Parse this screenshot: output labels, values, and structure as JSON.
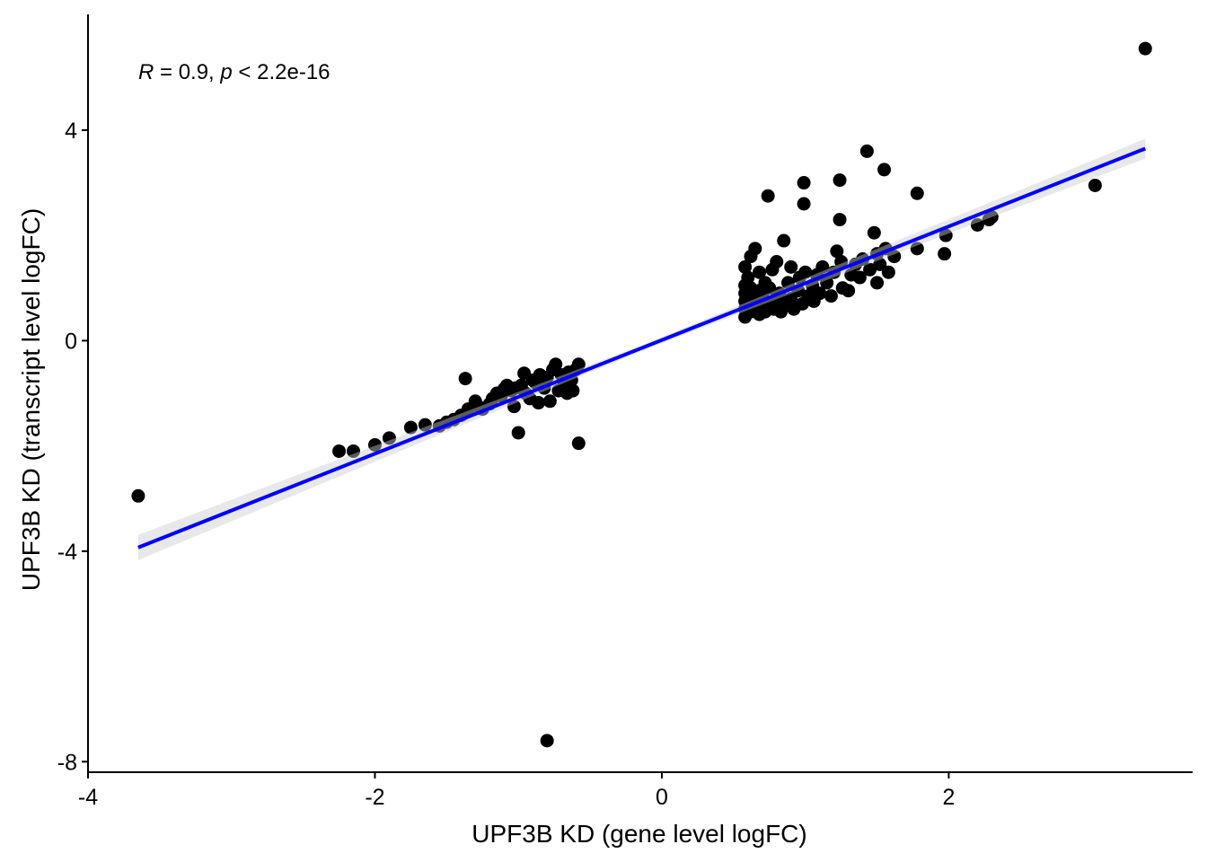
{
  "chart_data": {
    "type": "scatter",
    "xlabel": "UPF3B KD (gene level logFC)",
    "ylabel": "UPF3B KD (transcript level logFC)",
    "xlim": [
      -4.0,
      3.7
    ],
    "ylim": [
      -8.2,
      6.2
    ],
    "xticks": [
      -4,
      -2,
      0,
      2
    ],
    "xtick_labels": [
      "-4",
      "-2",
      "0",
      "2"
    ],
    "yticks": [
      -8,
      -4,
      0,
      4
    ],
    "ytick_labels": [
      "-8",
      "-4",
      "0",
      "4"
    ],
    "grid": false,
    "annotation": {
      "r_symbol": "R",
      "r_text": " = 0.9, ",
      "p_symbol": "p",
      "p_text": " < 2.2e-16"
    },
    "fit_line": {
      "color": "#0000ff",
      "x": [
        -3.65,
        3.37
      ],
      "y": [
        -3.93,
        3.65
      ]
    },
    "point_color": "#000000",
    "points": [
      [
        -3.65,
        -2.95
      ],
      [
        -0.8,
        -7.6
      ],
      [
        3.37,
        5.55
      ],
      [
        3.02,
        2.95
      ],
      [
        -2.25,
        -2.1
      ],
      [
        -2.15,
        -2.1
      ],
      [
        -2.0,
        -1.98
      ],
      [
        -1.9,
        -1.85
      ],
      [
        -1.75,
        -1.65
      ],
      [
        -1.65,
        -1.6
      ],
      [
        -1.55,
        -1.62
      ],
      [
        -1.5,
        -1.55
      ],
      [
        -1.45,
        -1.5
      ],
      [
        -1.4,
        -1.42
      ],
      [
        -1.37,
        -0.72
      ],
      [
        -1.35,
        -1.3
      ],
      [
        -1.3,
        -1.15
      ],
      [
        -1.28,
        -1.25
      ],
      [
        -1.25,
        -1.3
      ],
      [
        -1.2,
        -1.2
      ],
      [
        -1.18,
        -1.1
      ],
      [
        -1.15,
        -1.0
      ],
      [
        -1.12,
        -1.05
      ],
      [
        -1.1,
        -0.92
      ],
      [
        -1.08,
        -0.85
      ],
      [
        -1.05,
        -0.95
      ],
      [
        -1.03,
        -1.25
      ],
      [
        -1.02,
        -0.9
      ],
      [
        -1.0,
        -1.75
      ],
      [
        -0.98,
        -0.85
      ],
      [
        -0.95,
        -1.0
      ],
      [
        -0.92,
        -1.1
      ],
      [
        -0.9,
        -0.75
      ],
      [
        -0.88,
        -0.8
      ],
      [
        -0.85,
        -0.65
      ],
      [
        -0.82,
        -0.9
      ],
      [
        -0.8,
        -0.7
      ],
      [
        -0.78,
        -1.15
      ],
      [
        -0.76,
        -0.55
      ],
      [
        -0.74,
        -0.45
      ],
      [
        -0.72,
        -0.95
      ],
      [
        -0.7,
        -0.65
      ],
      [
        -0.68,
        -0.8
      ],
      [
        -0.65,
        -0.6
      ],
      [
        -0.63,
        -0.75
      ],
      [
        -0.6,
        -0.55
      ],
      [
        -0.58,
        -0.45
      ],
      [
        -0.58,
        -1.95
      ],
      [
        -0.62,
        -0.95
      ],
      [
        -0.66,
        -1.0
      ],
      [
        -0.86,
        -1.18
      ],
      [
        -0.96,
        -0.62
      ],
      [
        0.58,
        0.45
      ],
      [
        0.58,
        0.6
      ],
      [
        0.58,
        0.75
      ],
      [
        0.58,
        0.9
      ],
      [
        0.58,
        1.05
      ],
      [
        0.58,
        1.4
      ],
      [
        0.6,
        1.2
      ],
      [
        0.62,
        0.55
      ],
      [
        0.62,
        0.7
      ],
      [
        0.62,
        0.85
      ],
      [
        0.62,
        1.0
      ],
      [
        0.62,
        1.6
      ],
      [
        0.65,
        0.6
      ],
      [
        0.65,
        0.8
      ],
      [
        0.65,
        1.75
      ],
      [
        0.68,
        0.5
      ],
      [
        0.68,
        0.95
      ],
      [
        0.68,
        1.3
      ],
      [
        0.7,
        0.65
      ],
      [
        0.7,
        0.85
      ],
      [
        0.72,
        1.1
      ],
      [
        0.72,
        0.55
      ],
      [
        0.74,
        2.75
      ],
      [
        0.75,
        0.7
      ],
      [
        0.75,
        1.0
      ],
      [
        0.77,
        1.35
      ],
      [
        0.78,
        0.6
      ],
      [
        0.8,
        0.8
      ],
      [
        0.8,
        1.5
      ],
      [
        0.82,
        0.9
      ],
      [
        0.83,
        0.55
      ],
      [
        0.85,
        1.9
      ],
      [
        0.86,
        0.7
      ],
      [
        0.88,
        1.1
      ],
      [
        0.9,
        0.8
      ],
      [
        0.9,
        1.4
      ],
      [
        0.92,
        0.6
      ],
      [
        0.95,
        0.95
      ],
      [
        0.96,
        1.2
      ],
      [
        0.98,
        0.7
      ],
      [
        0.99,
        3.0
      ],
      [
        0.99,
        2.6
      ],
      [
        1.0,
        1.3
      ],
      [
        1.02,
        0.85
      ],
      [
        1.05,
        1.05
      ],
      [
        1.06,
        0.75
      ],
      [
        1.08,
        1.25
      ],
      [
        1.1,
        0.9
      ],
      [
        1.12,
        1.4
      ],
      [
        1.15,
        1.1
      ],
      [
        1.18,
        0.85
      ],
      [
        1.2,
        1.3
      ],
      [
        1.22,
        1.7
      ],
      [
        1.24,
        3.05
      ],
      [
        1.24,
        2.3
      ],
      [
        1.25,
        1.5
      ],
      [
        1.26,
        1.0
      ],
      [
        1.3,
        0.95
      ],
      [
        1.32,
        1.25
      ],
      [
        1.35,
        1.45
      ],
      [
        1.38,
        1.2
      ],
      [
        1.4,
        1.55
      ],
      [
        1.43,
        3.6
      ],
      [
        1.45,
        1.35
      ],
      [
        1.48,
        2.05
      ],
      [
        1.5,
        1.1
      ],
      [
        1.5,
        1.65
      ],
      [
        1.52,
        1.45
      ],
      [
        1.55,
        3.25
      ],
      [
        1.56,
        1.75
      ],
      [
        1.58,
        1.3
      ],
      [
        1.62,
        1.6
      ],
      [
        1.78,
        2.8
      ],
      [
        1.78,
        1.75
      ],
      [
        1.97,
        1.65
      ],
      [
        1.98,
        2.0
      ],
      [
        2.2,
        2.2
      ],
      [
        2.28,
        2.3
      ],
      [
        2.3,
        2.35
      ]
    ]
  }
}
